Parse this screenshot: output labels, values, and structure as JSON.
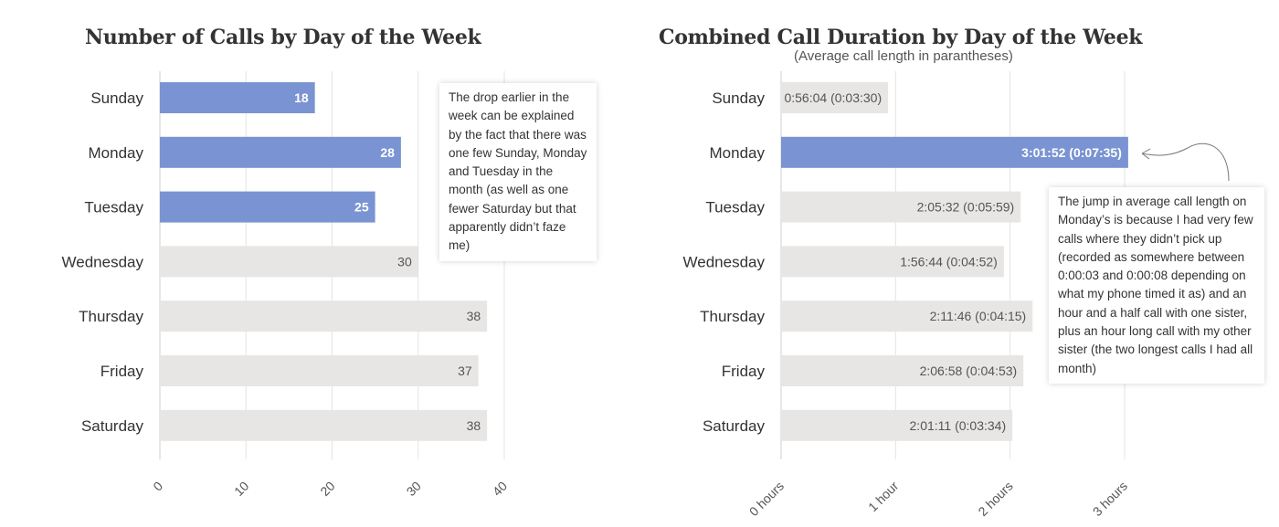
{
  "colors": {
    "highlight": "#7a93d2",
    "normal": "#e7e6e4",
    "grid": "#e3e3e3",
    "text": "#333333",
    "label_on_highlight": "#ffffff",
    "label_on_normal": "#555555"
  },
  "chart_data": [
    {
      "type": "bar",
      "orientation": "horizontal",
      "title": "Number of Calls by Day of the Week",
      "categories": [
        "Sunday",
        "Monday",
        "Tuesday",
        "Wednesday",
        "Thursday",
        "Friday",
        "Saturday"
      ],
      "values": [
        18,
        28,
        25,
        30,
        38,
        37,
        38
      ],
      "value_labels": [
        "18",
        "28",
        "25",
        "30",
        "38",
        "37",
        "38"
      ],
      "highlighted": [
        true,
        true,
        true,
        false,
        false,
        false,
        false
      ],
      "xlim": [
        0,
        40
      ],
      "xticks": [
        0,
        10,
        20,
        30,
        40
      ],
      "xtick_labels": [
        "0",
        "10",
        "20",
        "30",
        "40"
      ],
      "grid": true,
      "annotation": "The drop earlier in the week can be explained by the fact that there was one few Sunday, Monday and Tuesday in the month (as well as one fewer Saturday but that apparently didn’t faze me)"
    },
    {
      "type": "bar",
      "orientation": "horizontal",
      "title": "Combined Call Duration by Day of the Week",
      "subtitle": "(Average call length in parantheses)",
      "categories": [
        "Sunday",
        "Monday",
        "Tuesday",
        "Wednesday",
        "Thursday",
        "Friday",
        "Saturday"
      ],
      "values": [
        0.9344,
        3.0311,
        2.0922,
        1.9456,
        2.1961,
        2.1161,
        2.0197
      ],
      "value_labels": [
        "0:56:04 (0:03:30)",
        "3:01:52 (0:07:35)",
        "2:05:32 (0:05:59)",
        "1:56:44 (0:04:52)",
        "2:11:46 (0:04:15)",
        "2:06:58 (0:04:53)",
        "2:01:11 (0:03:34)"
      ],
      "highlighted": [
        false,
        true,
        false,
        false,
        false,
        false,
        false
      ],
      "xlim": [
        0,
        3
      ],
      "xticks": [
        0,
        1,
        2,
        3
      ],
      "xtick_labels": [
        "0 hours",
        "1 hour",
        "2 hours",
        "3 hours"
      ],
      "grid": true,
      "annotation": "The jump in average call length on Monday’s is because I had very few calls where they didn’t pick up (recorded as somewhere between 0:00:03 and 0:00:08 depending on what my phone timed it as) and an hour and a half call with one sister, plus an hour long call with my other sister (the two longest calls I had all month)"
    }
  ]
}
